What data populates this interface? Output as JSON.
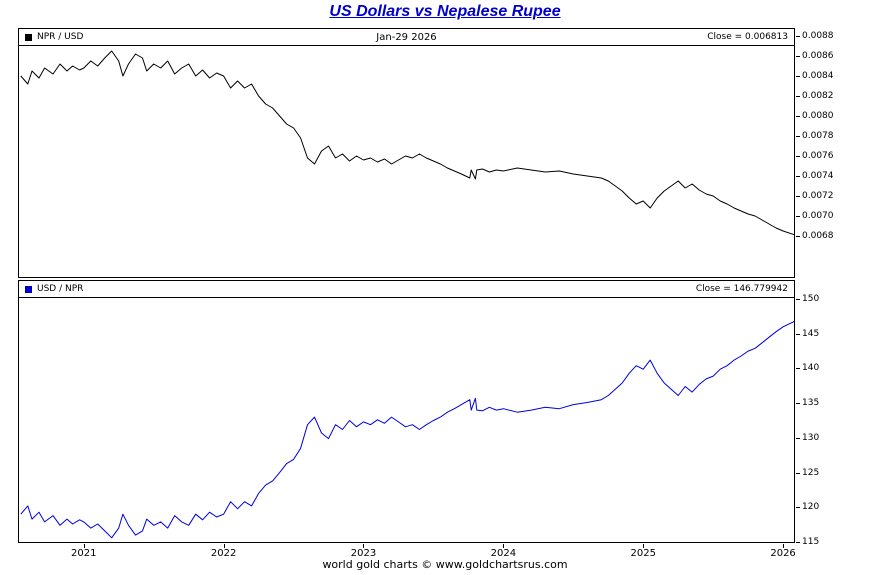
{
  "title": "US Dollars vs Nepalese Rupee",
  "footer": "world gold charts © www.goldchartsrus.com",
  "top_panel": {
    "legend": "NPR / USD",
    "date_label": "Jan-29  2026",
    "close_label": "Close = 0.006813"
  },
  "bottom_panel": {
    "legend": "USD / NPR",
    "close_label": "Close = 146.779942"
  },
  "colors": {
    "title": "#0000cc",
    "npr_usd_line": "#000000",
    "usd_npr_line": "#0000dd",
    "border": "#000000"
  },
  "chart_data": [
    {
      "type": "line",
      "title": "NPR / USD",
      "legend": "NPR / USD",
      "close": 0.006813,
      "close_date": "Jan-29 2026",
      "line_color": "#000000",
      "grid": false,
      "legend_position": "top-left",
      "y_axis_side": "right",
      "x_domain": [
        2020.537,
        2026.078
      ],
      "y_domain": [
        0.00639,
        0.00887
      ],
      "x_ticks": [
        2021,
        2022,
        2023,
        2024,
        2025,
        2026
      ],
      "y_ticks": [
        0.0088,
        0.0086,
        0.0084,
        0.0082,
        0.008,
        0.0078,
        0.0076,
        0.0074,
        0.0072,
        0.007,
        0.0068
      ],
      "y_tick_decimals": 4,
      "x": [
        2020.55,
        2020.6,
        2020.63,
        2020.68,
        2020.72,
        2020.78,
        2020.83,
        2020.88,
        2020.92,
        2020.97,
        2021.0,
        2021.05,
        2021.1,
        2021.15,
        2021.2,
        2021.25,
        2021.28,
        2021.32,
        2021.37,
        2021.42,
        2021.45,
        2021.5,
        2021.55,
        2021.6,
        2021.65,
        2021.7,
        2021.75,
        2021.8,
        2021.85,
        2021.9,
        2021.95,
        2022.0,
        2022.05,
        2022.1,
        2022.15,
        2022.2,
        2022.25,
        2022.3,
        2022.35,
        2022.4,
        2022.45,
        2022.5,
        2022.55,
        2022.6,
        2022.65,
        2022.7,
        2022.75,
        2022.8,
        2022.85,
        2022.9,
        2022.95,
        2023.0,
        2023.05,
        2023.1,
        2023.15,
        2023.2,
        2023.25,
        2023.3,
        2023.35,
        2023.4,
        2023.45,
        2023.5,
        2023.55,
        2023.6,
        2023.65,
        2023.7,
        2023.76,
        2023.77,
        2023.8,
        2023.81,
        2023.85,
        2023.9,
        2023.95,
        2024.0,
        2024.1,
        2024.2,
        2024.3,
        2024.4,
        2024.5,
        2024.6,
        2024.7,
        2024.75,
        2024.8,
        2024.85,
        2024.9,
        2024.95,
        2025.0,
        2025.05,
        2025.1,
        2025.15,
        2025.2,
        2025.25,
        2025.3,
        2025.35,
        2025.4,
        2025.45,
        2025.5,
        2025.55,
        2025.6,
        2025.65,
        2025.7,
        2025.75,
        2025.8,
        2025.85,
        2025.9,
        2025.95,
        2026.0,
        2026.08
      ],
      "values": [
        0.0084,
        0.00832,
        0.00845,
        0.00838,
        0.00848,
        0.00842,
        0.00852,
        0.00845,
        0.0085,
        0.00846,
        0.00848,
        0.00855,
        0.0085,
        0.00858,
        0.00865,
        0.00855,
        0.0084,
        0.00852,
        0.00862,
        0.00858,
        0.00845,
        0.00852,
        0.00848,
        0.00855,
        0.00842,
        0.00848,
        0.00852,
        0.0084,
        0.00846,
        0.00838,
        0.00843,
        0.0084,
        0.00828,
        0.00835,
        0.00828,
        0.00832,
        0.0082,
        0.00812,
        0.00808,
        0.008,
        0.00792,
        0.00788,
        0.00778,
        0.00758,
        0.00752,
        0.00765,
        0.0077,
        0.00758,
        0.00762,
        0.00755,
        0.0076,
        0.00756,
        0.00758,
        0.00754,
        0.00757,
        0.00752,
        0.00756,
        0.0076,
        0.00758,
        0.00762,
        0.00758,
        0.00755,
        0.00752,
        0.00748,
        0.00745,
        0.00742,
        0.00738,
        0.00746,
        0.00737,
        0.00746,
        0.00747,
        0.00744,
        0.00746,
        0.00745,
        0.00748,
        0.00746,
        0.00744,
        0.00745,
        0.00742,
        0.0074,
        0.00738,
        0.00735,
        0.0073,
        0.00725,
        0.00718,
        0.00712,
        0.00715,
        0.00708,
        0.00718,
        0.00725,
        0.0073,
        0.00735,
        0.00728,
        0.00732,
        0.00726,
        0.00722,
        0.0072,
        0.00715,
        0.00712,
        0.00708,
        0.00705,
        0.00702,
        0.007,
        0.00696,
        0.00692,
        0.00688,
        0.00685,
        0.006813
      ]
    },
    {
      "type": "line",
      "title": "USD / NPR",
      "legend": "USD / NPR",
      "close": 146.779942,
      "line_color": "#0000dd",
      "grid": false,
      "legend_position": "top-left",
      "y_axis_side": "right",
      "x_domain": [
        2020.537,
        2026.078
      ],
      "y_domain": [
        115.0,
        152.6
      ],
      "x_ticks": [
        2021,
        2022,
        2023,
        2024,
        2025,
        2026
      ],
      "y_ticks": [
        150,
        145,
        140,
        135,
        130,
        125,
        120,
        115
      ],
      "y_tick_decimals": 0,
      "x": [
        2020.55,
        2020.6,
        2020.63,
        2020.68,
        2020.72,
        2020.78,
        2020.83,
        2020.88,
        2020.92,
        2020.97,
        2021.0,
        2021.05,
        2021.1,
        2021.15,
        2021.2,
        2021.25,
        2021.28,
        2021.32,
        2021.37,
        2021.42,
        2021.45,
        2021.5,
        2021.55,
        2021.6,
        2021.65,
        2021.7,
        2021.75,
        2021.8,
        2021.85,
        2021.9,
        2021.95,
        2022.0,
        2022.05,
        2022.1,
        2022.15,
        2022.2,
        2022.25,
        2022.3,
        2022.35,
        2022.4,
        2022.45,
        2022.5,
        2022.55,
        2022.6,
        2022.65,
        2022.7,
        2022.75,
        2022.8,
        2022.85,
        2022.9,
        2022.95,
        2023.0,
        2023.05,
        2023.1,
        2023.15,
        2023.2,
        2023.25,
        2023.3,
        2023.35,
        2023.4,
        2023.45,
        2023.5,
        2023.55,
        2023.6,
        2023.65,
        2023.7,
        2023.76,
        2023.77,
        2023.8,
        2023.81,
        2023.85,
        2023.9,
        2023.95,
        2024.0,
        2024.1,
        2024.2,
        2024.3,
        2024.4,
        2024.5,
        2024.6,
        2024.7,
        2024.75,
        2024.8,
        2024.85,
        2024.9,
        2024.95,
        2025.0,
        2025.05,
        2025.1,
        2025.15,
        2025.2,
        2025.25,
        2025.3,
        2025.35,
        2025.4,
        2025.45,
        2025.5,
        2025.55,
        2025.6,
        2025.65,
        2025.7,
        2025.75,
        2025.8,
        2025.85,
        2025.9,
        2025.95,
        2026.0,
        2026.08
      ],
      "values": [
        119.0,
        120.2,
        118.3,
        119.3,
        117.9,
        118.8,
        117.4,
        118.3,
        117.6,
        118.2,
        117.9,
        117.0,
        117.6,
        116.6,
        115.6,
        117.0,
        119.0,
        117.4,
        116.0,
        116.6,
        118.3,
        117.4,
        117.9,
        117.0,
        118.8,
        117.9,
        117.4,
        119.0,
        118.2,
        119.3,
        118.6,
        119.0,
        120.8,
        119.8,
        120.8,
        120.2,
        122.0,
        123.2,
        123.8,
        125.0,
        126.3,
        126.9,
        128.5,
        131.9,
        133.0,
        130.7,
        129.9,
        131.9,
        131.2,
        132.5,
        131.6,
        132.3,
        131.9,
        132.6,
        132.1,
        133.0,
        132.3,
        131.6,
        131.9,
        131.2,
        131.9,
        132.5,
        133.0,
        133.7,
        134.2,
        134.8,
        135.5,
        134.0,
        135.7,
        134.0,
        133.9,
        134.4,
        134.0,
        134.2,
        133.7,
        134.0,
        134.4,
        134.2,
        134.8,
        135.1,
        135.5,
        136.1,
        137.0,
        137.9,
        139.3,
        140.4,
        139.9,
        141.2,
        139.3,
        137.9,
        137.0,
        136.1,
        137.4,
        136.6,
        137.7,
        138.5,
        138.9,
        139.9,
        140.4,
        141.2,
        141.8,
        142.5,
        142.9,
        143.7,
        144.5,
        145.3,
        146.0,
        146.78
      ]
    }
  ]
}
